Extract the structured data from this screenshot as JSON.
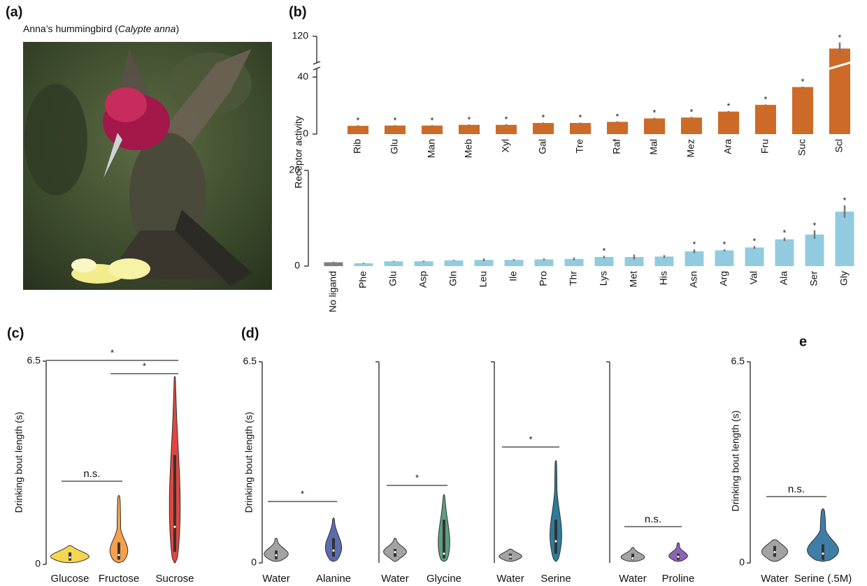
{
  "panel_a": {
    "label": "(a)",
    "caption": [
      "Anna’s hummingbird (",
      "Calypte anna",
      ")"
    ]
  },
  "chart_data": [
    {
      "type": "bar",
      "panel_label": "(b)",
      "ylabel": "Receptor activity",
      "categories": [
        "Rib",
        "Glu",
        "Man",
        "Meb",
        "Xyl",
        "Gal",
        "Tre",
        "Raf",
        "Mal",
        "Mez",
        "Ara",
        "Fru",
        "Suc",
        "Scl"
      ],
      "values": [
        5.8,
        6,
        6,
        6.5,
        6.5,
        7.8,
        7.8,
        8.6,
        11,
        11.6,
        15.8,
        20.5,
        33,
        110
      ],
      "errors": [
        0.4,
        0.3,
        0.3,
        0.3,
        0.4,
        0.3,
        0.3,
        0.4,
        0.5,
        0.5,
        0.4,
        0.3,
        0.3,
        5
      ],
      "significance": [
        "*",
        "*",
        "*",
        "*",
        "*",
        "*",
        "*",
        "*",
        "*",
        "*",
        "*",
        "*",
        "*",
        "*"
      ],
      "color": "#cd6a27",
      "ylim": [
        0,
        120
      ],
      "axis_break": [
        48,
        96
      ],
      "yticks": [
        0,
        40,
        120
      ]
    },
    {
      "type": "bar",
      "categories": [
        "No ligand",
        "Phe",
        "Glu",
        "Asp",
        "Gln",
        "Leu",
        "Ile",
        "Pro",
        "Thr",
        "Lys",
        "Met",
        "His",
        "Asn",
        "Arg",
        "Val",
        "Ala",
        "Ser",
        "Gly"
      ],
      "values": [
        0.8,
        0.6,
        1.0,
        1.0,
        1.2,
        1.3,
        1.3,
        1.4,
        1.5,
        1.9,
        1.9,
        2.0,
        3.1,
        3.3,
        3.9,
        5.6,
        6.6,
        11.4
      ],
      "errors": [
        0.1,
        0.1,
        0.1,
        0.15,
        0.1,
        0.3,
        0.15,
        0.2,
        0.3,
        0.25,
        0.5,
        0.3,
        0.4,
        0.2,
        0.3,
        0.35,
        0.9,
        1.3
      ],
      "significance": [
        null,
        null,
        null,
        null,
        null,
        null,
        null,
        null,
        null,
        "*",
        null,
        null,
        "*",
        "*",
        "*",
        "*",
        "*",
        "*"
      ],
      "colors": [
        "#7f7f7f",
        "#92cbe0",
        "#92cbe0",
        "#92cbe0",
        "#92cbe0",
        "#92cbe0",
        "#92cbe0",
        "#92cbe0",
        "#92cbe0",
        "#92cbe0",
        "#92cbe0",
        "#92cbe0",
        "#92cbe0",
        "#92cbe0",
        "#92cbe0",
        "#92cbe0",
        "#92cbe0",
        "#92cbe0"
      ],
      "ylim": [
        0,
        20
      ],
      "yticks": [
        0,
        20
      ]
    },
    {
      "type": "violin",
      "panel_label": "(c)",
      "ylabel": "Drinking bout length (s)",
      "categories": [
        "Glucose",
        "Fructose",
        "Sucrose"
      ],
      "stats": [
        {
          "min": 0.05,
          "q1": 0.12,
          "median": 0.22,
          "q3": 0.38,
          "max": 0.6
        },
        {
          "min": 0.05,
          "q1": 0.15,
          "median": 0.3,
          "q3": 0.7,
          "max": 2.2
        },
        {
          "min": 0.05,
          "q1": 0.4,
          "median": 1.2,
          "q3": 3.5,
          "max": 6.0
        }
      ],
      "colors": [
        "#f5d64e",
        "#f5a04a",
        "#e0463f"
      ],
      "comparisons": [
        {
          "between": [
            0,
            1
          ],
          "label": "n.s."
        },
        {
          "between": [
            1,
            2
          ],
          "label": "*"
        },
        {
          "between": [
            0,
            2
          ],
          "label": "*"
        }
      ],
      "ylim": [
        0,
        6.5
      ],
      "yticks": [
        0,
        6.5
      ]
    },
    {
      "type": "violin",
      "panel_label": "(d)",
      "ylabel": "Drinking bout length (s)",
      "categories": [
        "Water",
        "Alanine"
      ],
      "stats": [
        {
          "min": 0.05,
          "q1": 0.12,
          "median": 0.25,
          "q3": 0.4,
          "max": 0.8
        },
        {
          "min": 0.05,
          "q1": 0.2,
          "median": 0.4,
          "q3": 0.8,
          "max": 1.45
        }
      ],
      "colors": [
        "#a3a3a3",
        "#5b6db0"
      ],
      "comparisons": [
        {
          "between": [
            0,
            1
          ],
          "label": "*"
        }
      ],
      "ylim": [
        0,
        6.5
      ],
      "yticks": [
        0,
        6.5
      ]
    },
    {
      "type": "violin",
      "categories": [
        "Water",
        "Glycine"
      ],
      "stats": [
        {
          "min": 0.05,
          "q1": 0.2,
          "median": 0.35,
          "q3": 0.45,
          "max": 0.8
        },
        {
          "min": 0.05,
          "q1": 0.15,
          "median": 0.3,
          "q3": 1.4,
          "max": 2.2
        }
      ],
      "colors": [
        "#a3a3a3",
        "#5e9e82"
      ],
      "comparisons": [
        {
          "between": [
            0,
            1
          ],
          "label": "*"
        }
      ],
      "ylim": [
        0,
        6.5
      ]
    },
    {
      "type": "violin",
      "categories": [
        "Water",
        "Serine"
      ],
      "stats": [
        {
          "min": 0.05,
          "q1": 0.12,
          "median": 0.2,
          "q3": 0.3,
          "max": 0.45
        },
        {
          "min": 0.05,
          "q1": 0.3,
          "median": 0.7,
          "q3": 1.4,
          "max": 3.3
        }
      ],
      "colors": [
        "#a3a3a3",
        "#2e7b9a"
      ],
      "comparisons": [
        {
          "between": [
            0,
            1
          ],
          "label": "*"
        }
      ],
      "ylim": [
        0,
        6.5
      ]
    },
    {
      "type": "violin",
      "categories": [
        "Water",
        "Proline"
      ],
      "stats": [
        {
          "min": 0.05,
          "q1": 0.1,
          "median": 0.15,
          "q3": 0.3,
          "max": 0.5
        },
        {
          "min": 0.05,
          "q1": 0.1,
          "median": 0.2,
          "q3": 0.3,
          "max": 0.65
        }
      ],
      "colors": [
        "#a3a3a3",
        "#8e64b8"
      ],
      "comparisons": [
        {
          "between": [
            0,
            1
          ],
          "label": "n.s."
        }
      ],
      "ylim": [
        0,
        6.5
      ]
    },
    {
      "type": "violin",
      "panel_label": "e",
      "ylabel": "Drinking bout length (s)",
      "categories": [
        "Water",
        "Serine (.5M)"
      ],
      "stats": [
        {
          "min": 0.05,
          "q1": 0.2,
          "median": 0.35,
          "q3": 0.55,
          "max": 0.75
        },
        {
          "min": 0.05,
          "q1": 0.1,
          "median": 0.3,
          "q3": 0.6,
          "max": 1.75
        }
      ],
      "colors": [
        "#a3a3a3",
        "#3f7ea6"
      ],
      "comparisons": [
        {
          "between": [
            0,
            1
          ],
          "label": "n.s."
        }
      ],
      "ylim": [
        0,
        6.5
      ],
      "yticks": [
        0,
        6.5
      ]
    }
  ]
}
